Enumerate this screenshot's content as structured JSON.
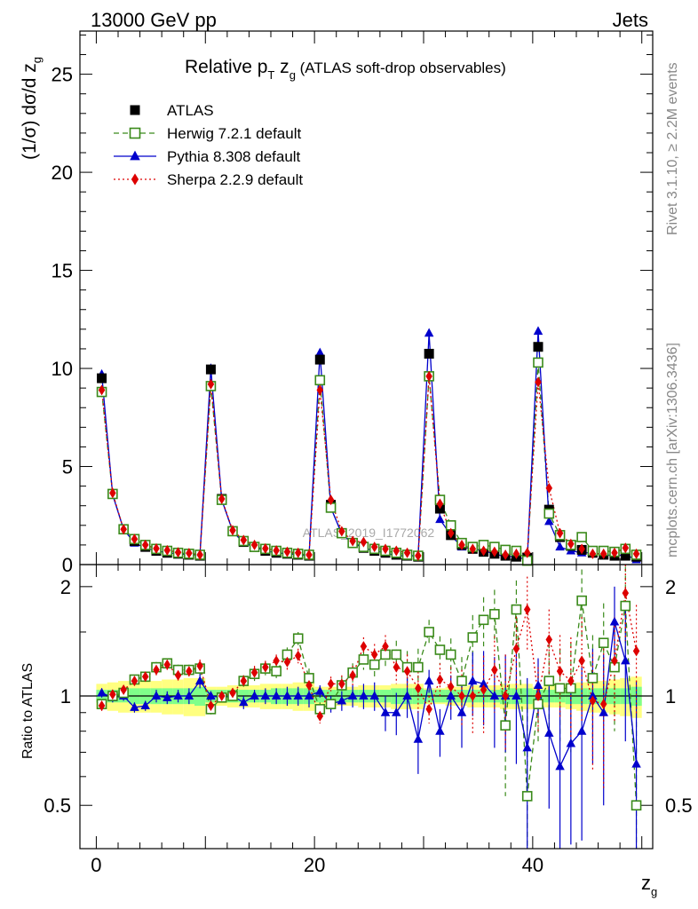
{
  "header": {
    "left": "13000 GeV pp",
    "right": "Jets"
  },
  "side_labels": {
    "rivet": "Rivet 3.1.10, ≥ 2.2M events",
    "mcplots": "mcplots.cern.ch [arXiv:1306.3436]"
  },
  "watermark": "ATLAS_2019_I1772062",
  "chart_data": [
    {
      "type": "scatter",
      "title_parts": {
        "main": "Relative p",
        "sub": "T",
        "mid": " z",
        "sub2": "g",
        "rest": " (ATLAS soft-drop observables)"
      },
      "ylabel": "(1/σ) dσ/d z",
      "ylabel_sub": "g",
      "xlabel": "z",
      "xlabel_sub": "g",
      "xlim": [
        -1.5,
        51
      ],
      "ylim": [
        0,
        27.2
      ],
      "yticks": [
        0,
        5,
        10,
        15,
        20,
        25
      ],
      "legend_position": "top-left",
      "series": [
        {
          "name": "ATLAS",
          "color": "#000000",
          "marker": "square",
          "x": [
            0.5,
            1.5,
            2.5,
            3.5,
            4.5,
            5.5,
            6.5,
            7.5,
            8.5,
            9.5,
            10.5,
            11.5,
            12.5,
            13.5,
            14.5,
            15.5,
            16.5,
            17.5,
            18.5,
            19.5,
            20.5,
            21.5,
            22.5,
            23.5,
            24.5,
            25.5,
            26.5,
            27.5,
            28.5,
            29.5,
            30.5,
            31.5,
            32.5,
            33.5,
            34.5,
            35.5,
            36.5,
            37.5,
            38.5,
            39.5,
            40.5,
            41.5,
            42.5,
            43.5,
            44.5,
            45.5,
            46.5,
            47.5,
            48.5,
            49.5
          ],
          "values": [
            9.5,
            3.6,
            1.8,
            1.2,
            0.9,
            0.7,
            0.6,
            0.55,
            0.5,
            0.45,
            9.95,
            3.35,
            1.7,
            1.15,
            0.9,
            0.7,
            0.6,
            0.55,
            0.5,
            0.45,
            10.45,
            3.05,
            1.6,
            1.1,
            0.85,
            0.7,
            0.6,
            0.5,
            0.45,
            0.4,
            10.75,
            2.85,
            1.5,
            1.0,
            0.8,
            0.65,
            0.55,
            0.45,
            0.4,
            0.35,
            11.1,
            2.8,
            1.4,
            0.95,
            0.75,
            0.6,
            0.5,
            0.45,
            0.45,
            0.4
          ]
        },
        {
          "name": "Herwig 7.2.1 default",
          "color": "#3a8a1a",
          "marker": "open-square",
          "x": [
            0.5,
            1.5,
            2.5,
            3.5,
            4.5,
            5.5,
            6.5,
            7.5,
            8.5,
            9.5,
            10.5,
            11.5,
            12.5,
            13.5,
            14.5,
            15.5,
            16.5,
            17.5,
            18.5,
            19.5,
            20.5,
            21.5,
            22.5,
            23.5,
            24.5,
            25.5,
            26.5,
            27.5,
            28.5,
            29.5,
            30.5,
            31.5,
            32.5,
            33.5,
            34.5,
            35.5,
            36.5,
            37.5,
            38.5,
            39.5,
            40.5,
            41.5,
            42.5,
            43.5,
            44.5,
            45.5,
            46.5,
            47.5,
            48.5,
            49.5
          ],
          "values": [
            8.8,
            3.6,
            1.8,
            1.3,
            1.0,
            0.8,
            0.7,
            0.6,
            0.55,
            0.5,
            9.1,
            3.3,
            1.7,
            1.2,
            0.9,
            0.8,
            0.7,
            0.6,
            0.55,
            0.5,
            9.4,
            2.9,
            1.6,
            1.1,
            0.9,
            0.8,
            0.7,
            0.6,
            0.5,
            0.45,
            9.6,
            3.3,
            2.0,
            1.1,
            0.9,
            1.0,
            0.9,
            0.75,
            0.7,
            0.2,
            10.3,
            2.6,
            1.5,
            1.0,
            1.4,
            0.7,
            0.7,
            0.65,
            0.8,
            0.5
          ]
        },
        {
          "name": "Pythia 8.308 default",
          "color": "#0000cc",
          "marker": "triangle",
          "x": [
            0.5,
            1.5,
            2.5,
            3.5,
            4.5,
            5.5,
            6.5,
            7.5,
            8.5,
            9.5,
            10.5,
            11.5,
            12.5,
            13.5,
            14.5,
            15.5,
            16.5,
            17.5,
            18.5,
            19.5,
            20.5,
            21.5,
            22.5,
            23.5,
            24.5,
            25.5,
            26.5,
            27.5,
            28.5,
            29.5,
            30.5,
            31.5,
            32.5,
            33.5,
            34.5,
            35.5,
            36.5,
            37.5,
            38.5,
            39.5,
            40.5,
            41.5,
            42.5,
            43.5,
            44.5,
            45.5,
            46.5,
            47.5,
            48.5,
            49.5
          ],
          "values": [
            9.7,
            3.55,
            1.8,
            1.1,
            0.85,
            0.7,
            0.6,
            0.55,
            0.5,
            0.5,
            10.0,
            3.3,
            1.7,
            1.1,
            0.9,
            0.7,
            0.6,
            0.55,
            0.5,
            0.45,
            10.8,
            2.9,
            1.55,
            1.1,
            0.85,
            0.7,
            0.6,
            0.45,
            0.45,
            0.45,
            11.8,
            2.3,
            1.5,
            0.9,
            0.8,
            0.7,
            0.55,
            0.4,
            0.4,
            0.25,
            11.9,
            2.2,
            0.9,
            0.7,
            0.6,
            0.6,
            0.5,
            0.45,
            0.5,
            0.25
          ]
        },
        {
          "name": "Sherpa 2.2.9 default",
          "color": "#dd0000",
          "marker": "diamond",
          "x": [
            0.5,
            1.5,
            2.5,
            3.5,
            4.5,
            5.5,
            6.5,
            7.5,
            8.5,
            9.5,
            10.5,
            11.5,
            12.5,
            13.5,
            14.5,
            15.5,
            16.5,
            17.5,
            18.5,
            19.5,
            20.5,
            21.5,
            22.5,
            23.5,
            24.5,
            25.5,
            26.5,
            27.5,
            28.5,
            29.5,
            30.5,
            31.5,
            32.5,
            33.5,
            34.5,
            35.5,
            36.5,
            37.5,
            38.5,
            39.5,
            40.5,
            41.5,
            42.5,
            43.5,
            44.5,
            45.5,
            46.5,
            47.5,
            48.5,
            49.5
          ],
          "values": [
            8.9,
            3.65,
            1.8,
            1.3,
            1.0,
            0.82,
            0.73,
            0.62,
            0.58,
            0.5,
            9.2,
            3.35,
            1.75,
            1.25,
            1.0,
            0.82,
            0.72,
            0.65,
            0.6,
            0.5,
            8.9,
            3.3,
            1.7,
            1.2,
            1.15,
            0.9,
            0.8,
            0.7,
            0.6,
            0.45,
            9.6,
            3.1,
            1.6,
            1.0,
            0.8,
            0.7,
            0.65,
            0.5,
            0.55,
            0.6,
            9.3,
            3.9,
            1.6,
            1.05,
            0.8,
            0.55,
            0.55,
            0.6,
            0.85,
            0.55
          ]
        }
      ]
    },
    {
      "type": "scatter",
      "ylabel": "Ratio to ATLAS",
      "ylim": [
        0.38,
        2.3
      ],
      "yticks": [
        0.5,
        1,
        2
      ],
      "xticks": [
        0,
        20,
        40
      ],
      "reference_line": 1.0,
      "bands": {
        "inner": {
          "color": "#7fff8a",
          "halfwidth": [
            0.04,
            0.04,
            0.04,
            0.05,
            0.05,
            0.05,
            0.05,
            0.05,
            0.05,
            0.06,
            0.04,
            0.04,
            0.04,
            0.04,
            0.04,
            0.04,
            0.05,
            0.05,
            0.05,
            0.05,
            0.04,
            0.04,
            0.04,
            0.04,
            0.04,
            0.04,
            0.04,
            0.05,
            0.05,
            0.05,
            0.04,
            0.04,
            0.04,
            0.04,
            0.04,
            0.04,
            0.04,
            0.05,
            0.05,
            0.05,
            0.04,
            0.04,
            0.04,
            0.05,
            0.05,
            0.05,
            0.05,
            0.05,
            0.05,
            0.06
          ]
        },
        "outer": {
          "color": "#ffff80",
          "halfwidth": [
            0.08,
            0.09,
            0.1,
            0.1,
            0.1,
            0.1,
            0.11,
            0.11,
            0.12,
            0.12,
            0.06,
            0.06,
            0.07,
            0.07,
            0.07,
            0.08,
            0.08,
            0.08,
            0.09,
            0.09,
            0.06,
            0.06,
            0.06,
            0.06,
            0.07,
            0.07,
            0.07,
            0.08,
            0.08,
            0.08,
            0.05,
            0.05,
            0.06,
            0.06,
            0.07,
            0.07,
            0.07,
            0.08,
            0.08,
            0.08,
            0.06,
            0.07,
            0.07,
            0.08,
            0.09,
            0.1,
            0.1,
            0.11,
            0.12,
            0.13
          ]
        }
      },
      "series": [
        {
          "name": "Herwig 7.2.1 default",
          "color": "#3a8a1a",
          "marker": "open-square",
          "x": [
            0.5,
            1.5,
            2.5,
            3.5,
            4.5,
            5.5,
            6.5,
            7.5,
            8.5,
            9.5,
            10.5,
            11.5,
            12.5,
            13.5,
            14.5,
            15.5,
            16.5,
            17.5,
            18.5,
            19.5,
            20.5,
            21.5,
            22.5,
            23.5,
            24.5,
            25.5,
            26.5,
            27.5,
            28.5,
            29.5,
            30.5,
            31.5,
            32.5,
            33.5,
            34.5,
            35.5,
            36.5,
            37.5,
            38.5,
            39.5,
            40.5,
            41.5,
            42.5,
            43.5,
            44.5,
            45.5,
            46.5,
            47.5,
            48.5,
            49.5
          ],
          "values": [
            0.95,
            1.0,
            1.02,
            1.11,
            1.13,
            1.2,
            1.23,
            1.18,
            1.18,
            1.19,
            0.92,
            0.99,
            1.0,
            1.1,
            1.15,
            1.19,
            1.17,
            1.3,
            1.44,
            1.12,
            0.92,
            0.95,
            1.07,
            1.16,
            1.26,
            1.22,
            1.3,
            1.3,
            1.2,
            1.2,
            1.5,
            1.34,
            1.3,
            1.1,
            1.45,
            1.62,
            1.68,
            0.83,
            1.73,
            0.53,
            0.95,
            1.1,
            1.05,
            1.05,
            1.83,
            1.12,
            1.4,
            1.2,
            1.77,
            0.5
          ],
          "err": [
            0.03,
            0.03,
            0.03,
            0.03,
            0.03,
            0.04,
            0.04,
            0.04,
            0.04,
            0.05,
            0.03,
            0.03,
            0.03,
            0.04,
            0.05,
            0.05,
            0.05,
            0.06,
            0.06,
            0.07,
            0.04,
            0.05,
            0.06,
            0.07,
            0.08,
            0.09,
            0.1,
            0.12,
            0.13,
            0.15,
            0.12,
            0.12,
            0.14,
            0.18,
            0.22,
            0.25,
            0.28,
            0.3,
            0.35,
            0.4,
            0.2,
            0.3,
            0.3,
            0.35,
            0.4,
            0.35,
            0.4,
            0.4,
            0.5,
            0.45
          ]
        },
        {
          "name": "Pythia 8.308 default",
          "color": "#0000cc",
          "marker": "triangle",
          "x": [
            0.5,
            1.5,
            2.5,
            3.5,
            4.5,
            5.5,
            6.5,
            7.5,
            8.5,
            9.5,
            10.5,
            11.5,
            12.5,
            13.5,
            14.5,
            15.5,
            16.5,
            17.5,
            18.5,
            19.5,
            20.5,
            21.5,
            22.5,
            23.5,
            24.5,
            25.5,
            26.5,
            27.5,
            28.5,
            29.5,
            30.5,
            31.5,
            32.5,
            33.5,
            34.5,
            35.5,
            36.5,
            37.5,
            38.5,
            39.5,
            40.5,
            41.5,
            42.5,
            43.5,
            44.5,
            45.5,
            46.5,
            47.5,
            48.5,
            49.5
          ],
          "values": [
            1.02,
            0.99,
            1.0,
            0.93,
            0.94,
            1.0,
            0.99,
            1.0,
            1.0,
            1.1,
            1.0,
            0.99,
            1.0,
            0.96,
            1.0,
            1.0,
            1.0,
            1.0,
            1.0,
            1.0,
            1.03,
            0.95,
            0.97,
            1.0,
            1.0,
            1.0,
            0.9,
            0.9,
            1.0,
            0.76,
            1.1,
            0.8,
            1.0,
            0.9,
            1.1,
            1.08,
            1.0,
            1.0,
            1.0,
            0.72,
            1.07,
            0.79,
            0.64,
            0.74,
            0.8,
            1.0,
            0.9,
            1.6,
            1.25,
            0.65
          ],
          "err": [
            0.03,
            0.03,
            0.03,
            0.03,
            0.03,
            0.04,
            0.04,
            0.04,
            0.05,
            0.05,
            0.03,
            0.03,
            0.03,
            0.04,
            0.04,
            0.05,
            0.05,
            0.06,
            0.06,
            0.07,
            0.04,
            0.05,
            0.06,
            0.07,
            0.08,
            0.09,
            0.1,
            0.12,
            0.13,
            0.15,
            0.08,
            0.12,
            0.14,
            0.18,
            0.22,
            0.25,
            0.28,
            0.3,
            0.35,
            0.4,
            0.2,
            0.3,
            0.3,
            0.35,
            0.4,
            0.35,
            0.4,
            0.4,
            0.5,
            0.45
          ]
        },
        {
          "name": "Sherpa 2.2.9 default",
          "color": "#dd0000",
          "marker": "diamond",
          "x": [
            0.5,
            1.5,
            2.5,
            3.5,
            4.5,
            5.5,
            6.5,
            7.5,
            8.5,
            9.5,
            10.5,
            11.5,
            12.5,
            13.5,
            14.5,
            15.5,
            16.5,
            17.5,
            18.5,
            19.5,
            20.5,
            21.5,
            22.5,
            23.5,
            24.5,
            25.5,
            26.5,
            27.5,
            28.5,
            29.5,
            30.5,
            31.5,
            32.5,
            33.5,
            34.5,
            35.5,
            36.5,
            37.5,
            38.5,
            39.5,
            40.5,
            41.5,
            42.5,
            43.5,
            44.5,
            45.5,
            46.5,
            47.5,
            48.5,
            49.5
          ],
          "values": [
            0.94,
            1.01,
            1.04,
            1.1,
            1.13,
            1.18,
            1.22,
            1.14,
            1.17,
            1.21,
            0.94,
            1.0,
            1.02,
            1.1,
            1.16,
            1.2,
            1.25,
            1.24,
            1.29,
            1.07,
            0.88,
            1.08,
            1.08,
            1.14,
            1.37,
            1.3,
            1.37,
            1.2,
            1.17,
            1.05,
            0.92,
            1.11,
            1.06,
            1.0,
            1.0,
            1.04,
            1.18,
            1.0,
            1.35,
            1.73,
            1.0,
            1.43,
            1.17,
            1.1,
            1.25,
            0.97,
            0.95,
            1.25,
            1.92,
            1.33
          ],
          "err": [
            0.03,
            0.03,
            0.03,
            0.03,
            0.03,
            0.04,
            0.04,
            0.04,
            0.04,
            0.05,
            0.03,
            0.03,
            0.03,
            0.04,
            0.05,
            0.05,
            0.05,
            0.06,
            0.06,
            0.07,
            0.04,
            0.05,
            0.06,
            0.07,
            0.08,
            0.09,
            0.1,
            0.12,
            0.13,
            0.15,
            0.08,
            0.12,
            0.14,
            0.18,
            0.22,
            0.25,
            0.28,
            0.3,
            0.35,
            0.4,
            0.2,
            0.3,
            0.3,
            0.35,
            0.4,
            0.35,
            0.4,
            0.4,
            0.5,
            0.45
          ]
        }
      ]
    }
  ]
}
